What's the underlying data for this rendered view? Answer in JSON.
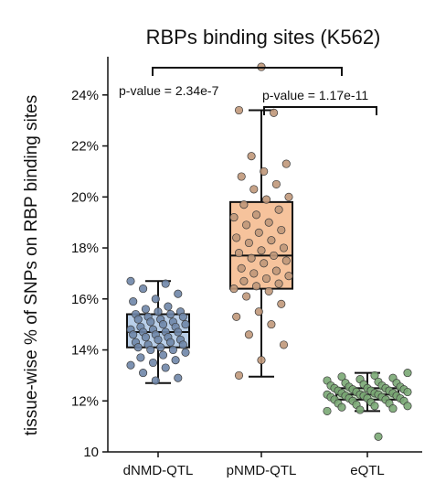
{
  "chart_data": {
    "type": "box",
    "title": "RBPs binding sites (K562)",
    "xlabel": "",
    "ylabel": "tissue-wise % of SNPs on RBP binding sites",
    "ylim": [
      10,
      25.5
    ],
    "yticks": [
      "10",
      "12%",
      "14%",
      "16%",
      "18%",
      "20%",
      "22%",
      "24%"
    ],
    "ytick_values": [
      10,
      12,
      14,
      16,
      18,
      20,
      22,
      24
    ],
    "categories": [
      "dNMD-QTL",
      "pNMD-QTL",
      "eQTL"
    ],
    "boxes": [
      {
        "category": "dNMD-QTL",
        "whisker_low": 12.7,
        "q1": 14.1,
        "median": 14.7,
        "q3": 15.4,
        "whisker_high": 16.7,
        "fill": "#b9cfe9",
        "point_color": "#6f86a8",
        "points": [
          16.7,
          16.6,
          16.4,
          16.2,
          16.0,
          15.9,
          15.7,
          15.6,
          15.5,
          15.5,
          15.4,
          15.4,
          15.3,
          15.3,
          15.2,
          15.2,
          15.1,
          15.1,
          15.0,
          15.0,
          14.9,
          14.9,
          14.8,
          14.8,
          14.7,
          14.7,
          14.7,
          14.6,
          14.6,
          14.5,
          14.5,
          14.4,
          14.4,
          14.3,
          14.3,
          14.2,
          14.2,
          14.1,
          14.1,
          14.0,
          14.0,
          13.9,
          13.8,
          13.7,
          13.6,
          13.5,
          13.4,
          13.3,
          13.1,
          12.9,
          12.8
        ]
      },
      {
        "category": "pNMD-QTL",
        "whisker_low": 12.95,
        "q1": 16.4,
        "median": 17.7,
        "q3": 19.8,
        "whisker_high": 23.4,
        "fill": "#f6c39c",
        "point_color": "#c0987a",
        "points": [
          25.1,
          23.4,
          23.3,
          21.6,
          21.3,
          21.0,
          20.8,
          20.5,
          20.3,
          20.0,
          19.9,
          19.7,
          19.5,
          19.3,
          19.2,
          19.0,
          18.9,
          18.7,
          18.6,
          18.4,
          18.3,
          18.2,
          18.0,
          17.9,
          17.8,
          17.7,
          17.6,
          17.5,
          17.4,
          17.2,
          17.1,
          17.0,
          16.9,
          16.8,
          16.7,
          16.6,
          16.5,
          16.4,
          16.3,
          16.1,
          15.8,
          15.5,
          15.3,
          15.0,
          14.6,
          14.2,
          13.6,
          13.0
        ]
      },
      {
        "category": "eQTL",
        "whisker_low": 11.6,
        "q1": 12.05,
        "median": 12.25,
        "q3": 12.5,
        "whisker_high": 13.1,
        "fill": "#c5dcc0",
        "point_color": "#7aa874",
        "points": [
          13.1,
          13.0,
          12.95,
          12.9,
          12.85,
          12.8,
          12.75,
          12.7,
          12.7,
          12.65,
          12.6,
          12.6,
          12.55,
          12.55,
          12.5,
          12.5,
          12.5,
          12.45,
          12.45,
          12.4,
          12.4,
          12.4,
          12.35,
          12.35,
          12.3,
          12.3,
          12.3,
          12.25,
          12.25,
          12.25,
          12.2,
          12.2,
          12.2,
          12.15,
          12.15,
          12.1,
          12.1,
          12.1,
          12.05,
          12.05,
          12.0,
          12.0,
          11.95,
          11.9,
          11.9,
          11.85,
          11.8,
          11.8,
          11.75,
          11.7,
          11.65,
          11.6,
          10.6
        ]
      }
    ],
    "annotations": [
      {
        "text": "p-value = 2.34e-7",
        "from": "dNMD-QTL",
        "to": "eQTL"
      },
      {
        "text": "p-value = 1.17e-11",
        "from": "pNMD-QTL",
        "to": "eQTL"
      }
    ],
    "grid": false,
    "legend": "none"
  }
}
